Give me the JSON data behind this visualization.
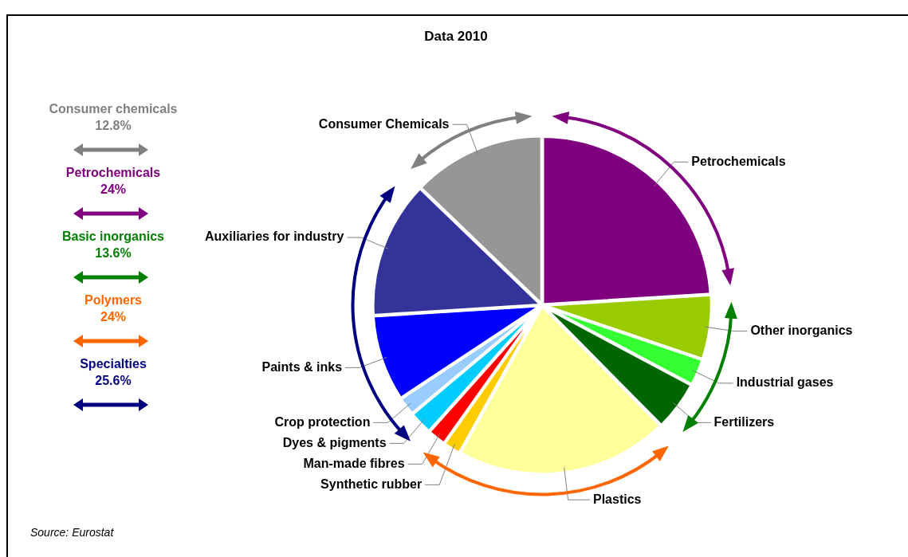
{
  "chart_data": {
    "type": "pie",
    "title": "Data 2010",
    "categories": [
      "Petrochemicals",
      "Other inorganics",
      "Industrial gases",
      "Fertilizers",
      "Plastics",
      "Synthetic rubber",
      "Man-made fibres",
      "Dyes & pigments",
      "Crop protection",
      "Paints & inks",
      "Auxiliaries for industry",
      "Consumer Chemicals"
    ],
    "values": [
      24,
      6.2,
      2.6,
      4.8,
      20.5,
      1.7,
      1.8,
      2.3,
      1.8,
      8.3,
      13.2,
      12.8
    ],
    "colors": [
      "#7f007f",
      "#99cc00",
      "#33ff33",
      "#006600",
      "#ffff99",
      "#ffcc00",
      "#ff0000",
      "#00ccff",
      "#99ccff",
      "#0000ff",
      "#333399",
      "#969696"
    ],
    "annotations": [
      "Consumer chemicals",
      "12.8%",
      "Petrochemicals",
      "24%",
      "Basic inorganics",
      "13.6%",
      "Polymers",
      "24%",
      "Specialties",
      "25.6%",
      "Source: Eurostat"
    ]
  }
}
